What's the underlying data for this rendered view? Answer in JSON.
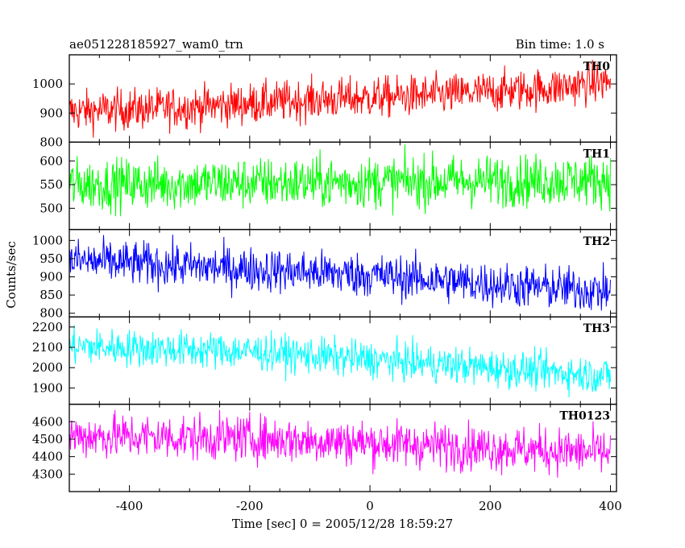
{
  "header": {
    "title": "ae051228185927_wam0_trn",
    "bin_time": "Bin time: 1.0 s"
  },
  "chart_data": {
    "type": "line",
    "xlabel": "Time [sec] 0 = 2005/12/28 18:59:27",
    "ylabel": "Counts/sec",
    "xlim": [
      -500,
      410
    ],
    "x_range": [
      -500,
      400
    ],
    "x_ticks": [
      -400,
      -200,
      0,
      200,
      400
    ],
    "grid": false,
    "series": [
      {
        "name": "TH0",
        "color": "#ff0000",
        "ylim": [
          800,
          1100
        ],
        "y_ticks": [
          800,
          900,
          1000
        ],
        "trend": [
          [
            -500,
            905
          ],
          [
            -300,
            920
          ],
          [
            -100,
            945
          ],
          [
            100,
            960
          ],
          [
            300,
            985
          ],
          [
            400,
            1010
          ]
        ],
        "scatter": 35
      },
      {
        "name": "TH1",
        "color": "#00ff00",
        "ylim": [
          455,
          640
        ],
        "y_ticks": [
          500,
          550,
          600
        ],
        "trend": [
          [
            -500,
            550
          ],
          [
            400,
            560
          ]
        ],
        "scatter": 27
      },
      {
        "name": "TH2",
        "color": "#0000ff",
        "ylim": [
          790,
          1030
        ],
        "y_ticks": [
          800,
          850,
          900,
          950,
          1000
        ],
        "trend": [
          [
            -500,
            945
          ],
          [
            -250,
            925
          ],
          [
            0,
            905
          ],
          [
            200,
            880
          ],
          [
            400,
            860
          ]
        ],
        "scatter": 30
      },
      {
        "name": "TH3",
        "color": "#00ffff",
        "ylim": [
          1820,
          2250
        ],
        "y_ticks": [
          1900,
          2000,
          2100,
          2200
        ],
        "trend": [
          [
            -500,
            2105
          ],
          [
            -200,
            2080
          ],
          [
            0,
            2040
          ],
          [
            200,
            2000
          ],
          [
            400,
            1960
          ]
        ],
        "scatter": 45
      },
      {
        "name": "TH0123",
        "color": "#ff00ff",
        "ylim": [
          4200,
          4700
        ],
        "y_ticks": [
          4300,
          4400,
          4500,
          4600
        ],
        "trend": [
          [
            -500,
            4520
          ],
          [
            -200,
            4505
          ],
          [
            0,
            4480
          ],
          [
            200,
            4450
          ],
          [
            400,
            4420
          ]
        ],
        "scatter": 65
      }
    ]
  }
}
